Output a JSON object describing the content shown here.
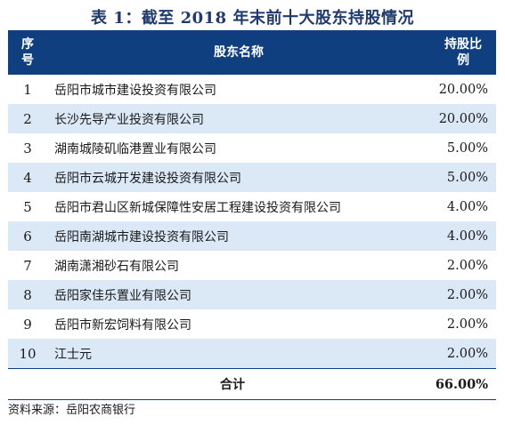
{
  "title": "表 1：截至 2018 年末前十大股东持股情况",
  "table": {
    "headers": {
      "no_line1": "序",
      "no_line2": "号",
      "name": "股东名称",
      "pct_line1": "持股比",
      "pct_line2": "例"
    },
    "rows": [
      {
        "no": "1",
        "name": "岳阳市城市建设投资有限公司",
        "pct": "20.00%"
      },
      {
        "no": "2",
        "name": "长沙先导产业投资有限公司",
        "pct": "20.00%"
      },
      {
        "no": "3",
        "name": "湖南城陵矶临港置业有限公司",
        "pct": "5.00%"
      },
      {
        "no": "4",
        "name": "岳阳市云城开发建设投资有限公司",
        "pct": "5.00%"
      },
      {
        "no": "5",
        "name": "岳阳市君山区新城保障性安居工程建设投资有限公司",
        "pct": "4.00%"
      },
      {
        "no": "6",
        "name": "岳阳南湖城市建设投资有限公司",
        "pct": "4.00%"
      },
      {
        "no": "7",
        "name": "湖南潇湘砂石有限公司",
        "pct": "2.00%"
      },
      {
        "no": "8",
        "name": "岳阳家佳乐置业有限公司",
        "pct": "2.00%"
      },
      {
        "no": "9",
        "name": "岳阳市新宏饲料有限公司",
        "pct": "2.00%"
      },
      {
        "no": "10",
        "name": "江士元",
        "pct": "2.00%"
      }
    ],
    "total": {
      "label": "合计",
      "pct": "66.00%"
    }
  },
  "source": "资料来源：岳阳农商银行",
  "colors": {
    "header_bg": "#0f3f7e",
    "stripe_bg": "#dbe8f6",
    "title": "#1f3a6b"
  }
}
